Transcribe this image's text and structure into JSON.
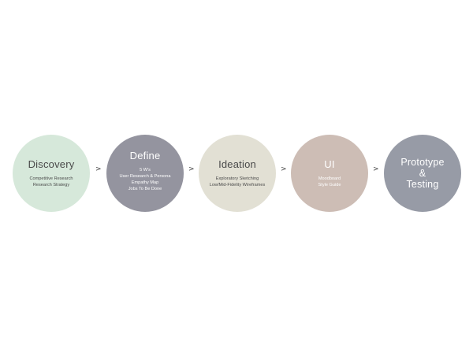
{
  "stages": [
    {
      "title": "Discovery",
      "items": [
        "Competitive Research",
        "Research Strategy"
      ],
      "color": "#d6e8da",
      "text_color": "#4a4a4a"
    },
    {
      "title": "Define",
      "items": [
        "5 W's",
        "User Research & Persona",
        "Empathy Map",
        "Jobs To Be Done"
      ],
      "color": "#94949f",
      "text_color": "#ffffff"
    },
    {
      "title": "Ideation",
      "items": [
        "Exploratory Sketching",
        "Low/Mid-Fidelity Wireframes"
      ],
      "color": "#e2e0d4",
      "text_color": "#4a4a4a"
    },
    {
      "title": "UI",
      "items": [
        "Moodboard",
        "Style Guide"
      ],
      "color": "#cdbdb5",
      "text_color": "#ffffff"
    },
    {
      "title_lines": [
        "Prototype",
        "&",
        "Testing"
      ],
      "items": [],
      "color": "#979ba6",
      "text_color": "#ffffff"
    }
  ],
  "arrows": [
    ">",
    ">",
    ">",
    ">"
  ]
}
